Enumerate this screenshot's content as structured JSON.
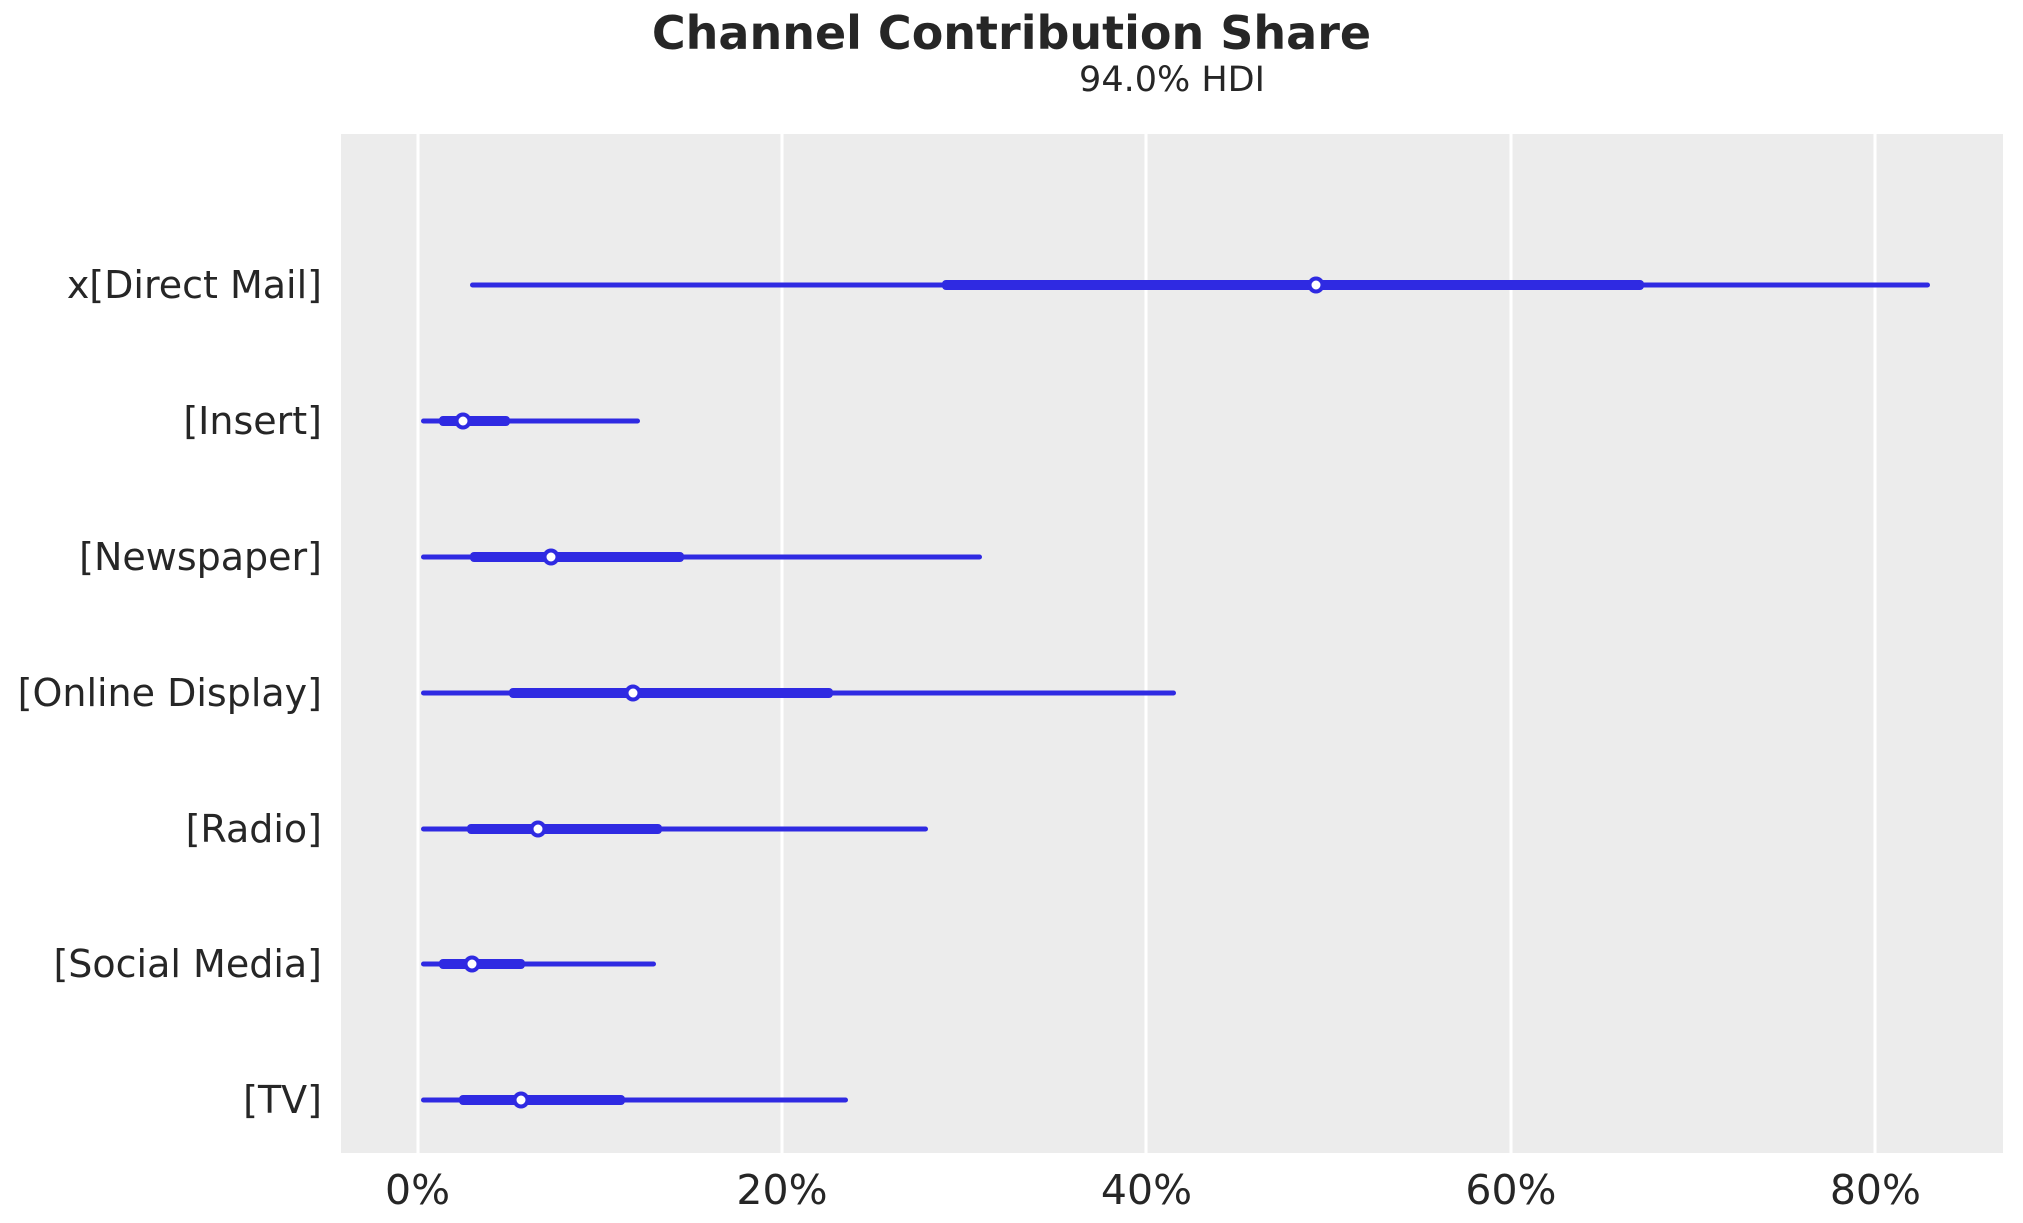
{
  "header": {
    "title": "Channel Contribution Share",
    "subtitle": "94.0% HDI"
  },
  "colors": {
    "interval_line": "#2f2ae2",
    "marker_fill": "#ffffff",
    "plot_background": "#ececec",
    "gridline": "#ffffff",
    "text": "#262626"
  },
  "chart_data": {
    "type": "forest",
    "title": "Channel Contribution Share",
    "subtitle": "94.0% HDI",
    "hdi_prob_label": "94.0% HDI",
    "xlabel": "",
    "ylabel": "",
    "x_unit": "percent",
    "xlim": [
      -4.2,
      87.0
    ],
    "x_ticks": [
      {
        "value": 0,
        "label": "0%"
      },
      {
        "value": 20,
        "label": "20%"
      },
      {
        "value": 40,
        "label": "40%"
      },
      {
        "value": 60,
        "label": "60%"
      },
      {
        "value": 80,
        "label": "80%"
      }
    ],
    "grid": "vertical-white-on-gray",
    "legend": "none",
    "rows": [
      {
        "label": "x[Direct Mail]",
        "hdi_94": [
          2.9,
          83.0
        ],
        "interquartile": [
          28.8,
          67.3
        ],
        "point": 49.3
      },
      {
        "label": "[Insert]",
        "hdi_94": [
          0.2,
          12.2
        ],
        "interquartile": [
          1.2,
          5.1
        ],
        "point": 2.5
      },
      {
        "label": "[Newspaper]",
        "hdi_94": [
          0.2,
          31.0
        ],
        "interquartile": [
          2.9,
          14.6
        ],
        "point": 7.3
      },
      {
        "label": "[Online Display]",
        "hdi_94": [
          0.2,
          41.6
        ],
        "interquartile": [
          5.0,
          22.8
        ],
        "point": 11.8
      },
      {
        "label": "[Radio]",
        "hdi_94": [
          0.2,
          28.0
        ],
        "interquartile": [
          2.7,
          13.4
        ],
        "point": 6.6
      },
      {
        "label": "[Social Media]",
        "hdi_94": [
          0.2,
          13.1
        ],
        "interquartile": [
          1.2,
          5.9
        ],
        "point": 3.0
      },
      {
        "label": "[TV]",
        "hdi_94": [
          0.2,
          23.6
        ],
        "interquartile": [
          2.3,
          11.4
        ],
        "point": 5.7
      }
    ],
    "row_layout": {
      "first_center_frac": 0.1482,
      "spacing_frac": 0.13335
    }
  }
}
